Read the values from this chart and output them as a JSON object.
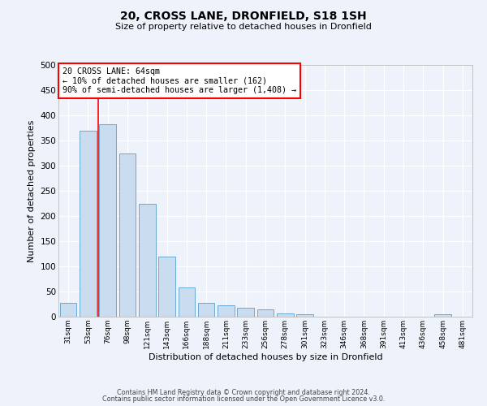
{
  "title": "20, CROSS LANE, DRONFIELD, S18 1SH",
  "subtitle": "Size of property relative to detached houses in Dronfield",
  "xlabel": "Distribution of detached houses by size in Dronfield",
  "ylabel": "Number of detached properties",
  "bar_color": "#c9dcf0",
  "bar_edge_color": "#6aaad4",
  "background_color": "#eef2fa",
  "grid_color": "#ffffff",
  "ylim": [
    0,
    500
  ],
  "yticks": [
    0,
    50,
    100,
    150,
    200,
    250,
    300,
    350,
    400,
    450,
    500
  ],
  "categories": [
    "31sqm",
    "53sqm",
    "76sqm",
    "98sqm",
    "121sqm",
    "143sqm",
    "166sqm",
    "188sqm",
    "211sqm",
    "233sqm",
    "256sqm",
    "278sqm",
    "301sqm",
    "323sqm",
    "346sqm",
    "368sqm",
    "391sqm",
    "413sqm",
    "436sqm",
    "458sqm",
    "481sqm"
  ],
  "values": [
    28,
    370,
    383,
    325,
    225,
    120,
    58,
    28,
    22,
    17,
    14,
    6,
    5,
    0,
    0,
    0,
    0,
    0,
    0,
    5,
    0
  ],
  "red_line_x": 1.5,
  "annotation_title": "20 CROSS LANE: 64sqm",
  "annotation_line1": "← 10% of detached houses are smaller (162)",
  "annotation_line2": "90% of semi-detached houses are larger (1,408) →",
  "footer_line1": "Contains HM Land Registry data © Crown copyright and database right 2024.",
  "footer_line2": "Contains public sector information licensed under the Open Government Licence v3.0."
}
